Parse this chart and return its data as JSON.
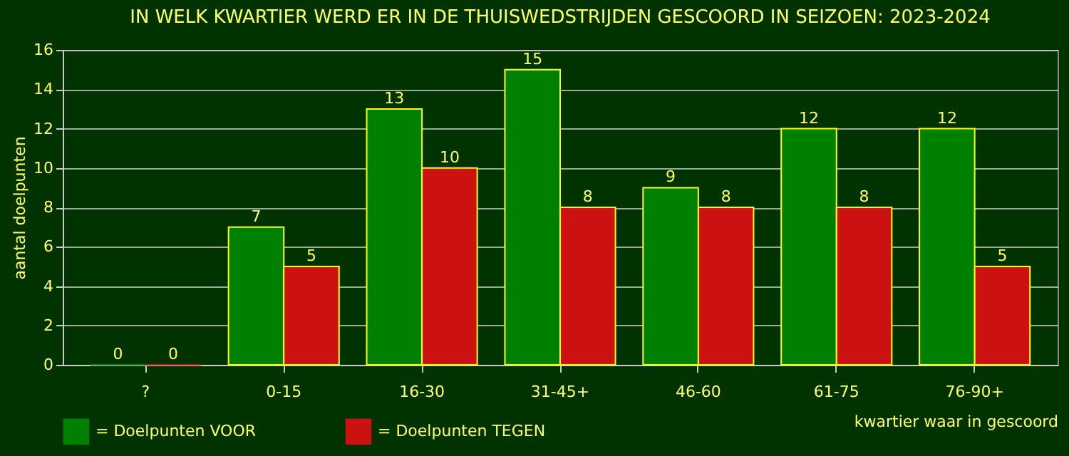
{
  "chart_data": {
    "type": "bar",
    "title": "IN WELK KWARTIER WERD ER IN DE THUISWEDSTRIJDEN GESCOORD IN SEIZOEN: 2023-2024",
    "xlabel": "kwartier waar in gescoord",
    "ylabel": "aantal doelpunten",
    "categories": [
      "?",
      "0-15",
      "16-30",
      "31-45+",
      "46-60",
      "61-75",
      "76-90+"
    ],
    "series": [
      {
        "name": "= Doelpunten VOOR",
        "color": "#008000",
        "values": [
          0,
          7,
          13,
          15,
          9,
          12,
          12
        ]
      },
      {
        "name": "= Doelpunten TEGEN",
        "color": "#cc1111",
        "values": [
          0,
          5,
          10,
          8,
          8,
          8,
          5
        ]
      }
    ],
    "ylim": [
      0,
      16
    ],
    "yticks": [
      0,
      2,
      4,
      6,
      8,
      10,
      12,
      14,
      16
    ],
    "grid": "y",
    "legend": "bottom",
    "data_labels": true
  }
}
